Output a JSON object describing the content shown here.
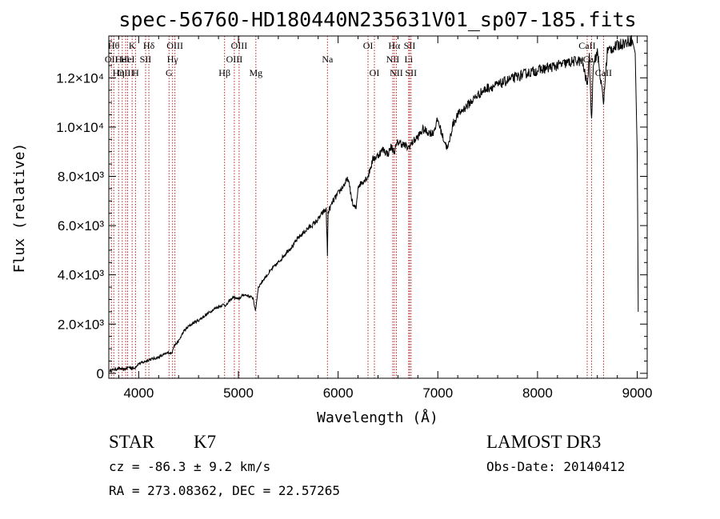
{
  "chart_data": {
    "type": "line",
    "title": "spec-56760-HD180440N235631V01_sp07-185.fits",
    "xlabel": "Wavelength (Å)",
    "ylabel": "Flux (relative)",
    "xlim": [
      3700,
      9100
    ],
    "ylim": [
      -200,
      13700
    ],
    "x_ticks": [
      {
        "value": 4000,
        "label": "4000"
      },
      {
        "value": 5000,
        "label": "5000"
      },
      {
        "value": 6000,
        "label": "6000"
      },
      {
        "value": 7000,
        "label": "7000"
      },
      {
        "value": 8000,
        "label": "8000"
      },
      {
        "value": 9000,
        "label": "9000"
      }
    ],
    "y_ticks": [
      {
        "value": 0,
        "label": "0"
      },
      {
        "value": 2000,
        "label": "2.0×10³"
      },
      {
        "value": 4000,
        "label": "4.0×10³"
      },
      {
        "value": 6000,
        "label": "6.0×10³"
      },
      {
        "value": 8000,
        "label": "8.0×10³"
      },
      {
        "value": 10000,
        "label": "1.0×10⁴"
      },
      {
        "value": 12000,
        "label": "1.2×10⁴"
      }
    ],
    "series": [
      {
        "name": "spectrum",
        "x": [
          3710,
          3750,
          3800,
          3850,
          3900,
          3950,
          3990,
          4000,
          4050,
          4100,
          4150,
          4200,
          4250,
          4300,
          4330,
          4350,
          4400,
          4450,
          4500,
          4550,
          4600,
          4650,
          4700,
          4750,
          4800,
          4850,
          4880,
          4900,
          4950,
          5000,
          5050,
          5100,
          5150,
          5170,
          5200,
          5250,
          5300,
          5350,
          5400,
          5450,
          5500,
          5550,
          5600,
          5650,
          5700,
          5750,
          5800,
          5850,
          5880,
          5893,
          5900,
          5950,
          6000,
          6050,
          6100,
          6150,
          6180,
          6200,
          6250,
          6300,
          6350,
          6400,
          6450,
          6500,
          6530,
          6563,
          6600,
          6650,
          6700,
          6750,
          6800,
          6850,
          6900,
          6950,
          7000,
          7050,
          7100,
          7150,
          7200,
          7300,
          7400,
          7500,
          7600,
          7700,
          7800,
          7900,
          8000,
          8100,
          8200,
          8300,
          8400,
          8450,
          8498,
          8520,
          8542,
          8560,
          8600,
          8662,
          8700,
          8750,
          8800,
          8850,
          8900,
          8950,
          8980,
          9000,
          9010
        ],
        "y": [
          100,
          150,
          200,
          150,
          250,
          200,
          350,
          400,
          450,
          550,
          600,
          650,
          750,
          850,
          800,
          1100,
          1300,
          1700,
          1900,
          2050,
          2150,
          2300,
          2450,
          2600,
          2700,
          2800,
          2750,
          2900,
          3100,
          3000,
          3200,
          3150,
          3050,
          2500,
          3500,
          3800,
          4050,
          4300,
          4500,
          4750,
          5000,
          5200,
          5500,
          5700,
          5900,
          6050,
          6250,
          6550,
          6650,
          4800,
          6550,
          7000,
          7300,
          7600,
          7900,
          6800,
          6700,
          7600,
          7800,
          8000,
          8700,
          8850,
          9100,
          8900,
          9200,
          9000,
          9400,
          9300,
          9150,
          9400,
          9600,
          9900,
          9800,
          9750,
          10300,
          9600,
          9100,
          10100,
          10500,
          10900,
          11300,
          11600,
          11700,
          11900,
          12050,
          12200,
          12300,
          12400,
          12500,
          12600,
          12700,
          12650,
          11700,
          12800,
          10200,
          12700,
          13000,
          11000,
          13100,
          13200,
          13300,
          13400,
          13450,
          13550,
          13000,
          9000,
          2500
        ]
      }
    ],
    "line_markers": [
      {
        "wavelength": 3726,
        "label": "OII",
        "row": 1
      },
      {
        "wavelength": 3750,
        "label": "Hθ",
        "row": 0
      },
      {
        "wavelength": 3798,
        "label": "Hη",
        "row": 2
      },
      {
        "wavelength": 3835,
        "label": "HeI",
        "row": 1
      },
      {
        "wavelength": 3869,
        "label": "OIII",
        "row": 2
      },
      {
        "wavelength": 3889,
        "label": "HeI",
        "row": 1
      },
      {
        "wavelength": 3934,
        "label": "K",
        "row": 0
      },
      {
        "wavelength": 3968,
        "label": "H",
        "row": 2
      },
      {
        "wavelength": 4069,
        "label": "SII",
        "row": 1
      },
      {
        "wavelength": 4102,
        "label": "Hδ",
        "row": 0
      },
      {
        "wavelength": 4304,
        "label": "G",
        "row": 2
      },
      {
        "wavelength": 4340,
        "label": "Hγ",
        "row": 1
      },
      {
        "wavelength": 4363,
        "label": "OIII",
        "row": 0
      },
      {
        "wavelength": 4861,
        "label": "Hβ",
        "row": 2
      },
      {
        "wavelength": 4959,
        "label": "OIII",
        "row": 1
      },
      {
        "wavelength": 5007,
        "label": "OIII",
        "row": 0
      },
      {
        "wavelength": 5175,
        "label": "Mg",
        "row": 2
      },
      {
        "wavelength": 5893,
        "label": "Na",
        "row": 1
      },
      {
        "wavelength": 6300,
        "label": "OI",
        "row": 0
      },
      {
        "wavelength": 6364,
        "label": "OI",
        "row": 2
      },
      {
        "wavelength": 6548,
        "label": "NII",
        "row": 1
      },
      {
        "wavelength": 6563,
        "label": "Hα",
        "row": 0
      },
      {
        "wavelength": 6584,
        "label": "NII",
        "row": 2
      },
      {
        "wavelength": 6708,
        "label": "Li",
        "row": 1
      },
      {
        "wavelength": 6717,
        "label": "SII",
        "row": 0
      },
      {
        "wavelength": 6731,
        "label": "SII",
        "row": 2
      },
      {
        "wavelength": 8498,
        "label": "CaII",
        "row": 0
      },
      {
        "wavelength": 8542,
        "label": "CaII",
        "row": 1
      },
      {
        "wavelength": 8662,
        "label": "CaII",
        "row": 2
      }
    ],
    "marker_color": "#b22222"
  },
  "info": {
    "class_label": "STAR",
    "subclass": "K7",
    "survey": "LAMOST DR3",
    "cz": "cz = -86.3 ± 9.2 km/s",
    "obs_date": "Obs-Date: 20140412",
    "coords": "RA = 273.08362, DEC =  22.57265"
  }
}
